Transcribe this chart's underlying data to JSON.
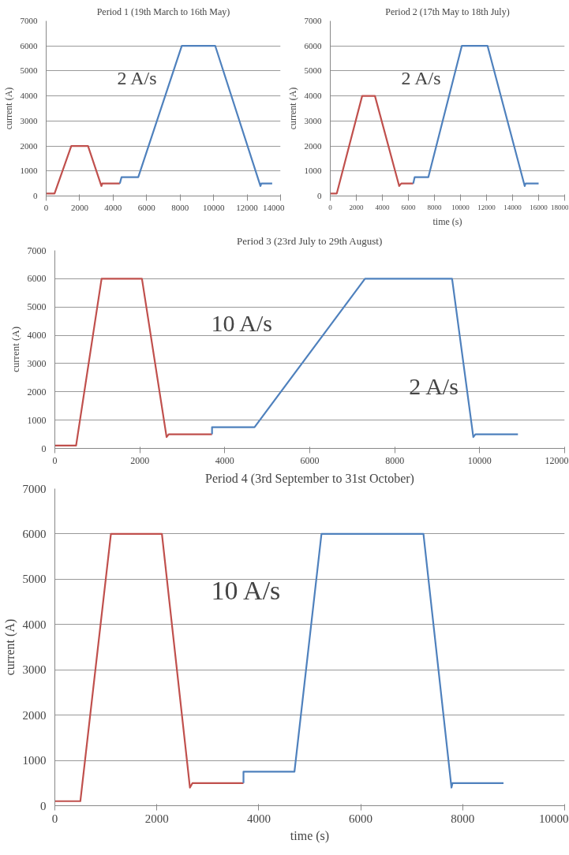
{
  "chart_data": [
    {
      "type": "line",
      "title": "Period 1 (19th March to 16th May)",
      "ylabel": "current (A)",
      "xlim": [
        0,
        14000
      ],
      "ylim": [
        0,
        7000
      ],
      "xticks": [
        0,
        2000,
        4000,
        6000,
        8000,
        10000,
        12000,
        14000
      ],
      "yticks": [
        0,
        1000,
        2000,
        3000,
        4000,
        5000,
        6000,
        7000
      ],
      "grid": "y",
      "annotations": [
        "2 A/s"
      ],
      "series": [
        {
          "color": "#c0504d",
          "x": [
            0,
            500,
            1500,
            2500,
            3300,
            3350,
            4400
          ],
          "values": [
            100,
            100,
            2000,
            2000,
            400,
            500,
            500
          ]
        },
        {
          "color": "#4f81bd",
          "x": [
            4400,
            4500,
            5500,
            8100,
            10100,
            12800,
            12850,
            13500
          ],
          "values": [
            500,
            750,
            750,
            6000,
            6000,
            400,
            500,
            500
          ]
        }
      ]
    },
    {
      "type": "line",
      "title": "Period 2 (17th May to 18th July)",
      "xlabel": "time (s)",
      "ylabel": "current (A)",
      "xlim": [
        0,
        18000
      ],
      "ylim": [
        0,
        7000
      ],
      "xticks": [
        0,
        2000,
        4000,
        6000,
        8000,
        10000,
        12000,
        14000,
        16000,
        18000
      ],
      "yticks": [
        0,
        1000,
        2000,
        3000,
        4000,
        5000,
        6000,
        7000
      ],
      "grid": "y",
      "annotations": [
        "2 A/s"
      ],
      "series": [
        {
          "color": "#c0504d",
          "x": [
            0,
            500,
            2450,
            3430,
            5290,
            5450,
            6370
          ],
          "values": [
            100,
            100,
            4000,
            4000,
            400,
            500,
            500
          ]
        },
        {
          "color": "#4f81bd",
          "x": [
            6370,
            6480,
            7530,
            10100,
            12080,
            14930,
            15000,
            16000
          ],
          "values": [
            500,
            750,
            750,
            6000,
            6000,
            400,
            500,
            500
          ]
        }
      ]
    },
    {
      "type": "line",
      "title": "Period 3 (23rd July to 29th August)",
      "ylabel": "current (A)",
      "xlim": [
        0,
        12000
      ],
      "ylim": [
        0,
        7000
      ],
      "xticks": [
        0,
        2000,
        4000,
        6000,
        8000,
        10000,
        12000
      ],
      "yticks": [
        0,
        1000,
        2000,
        3000,
        4000,
        5000,
        6000,
        7000
      ],
      "grid": "y",
      "annotations": [
        "10 A/s",
        "2 A/s"
      ],
      "series": [
        {
          "color": "#c0504d",
          "x": [
            0,
            500,
            1100,
            2050,
            2630,
            2680,
            3700
          ],
          "values": [
            100,
            100,
            6000,
            6000,
            400,
            500,
            500
          ]
        },
        {
          "color": "#4f81bd",
          "x": [
            3700,
            3700,
            4700,
            7300,
            9350,
            9850,
            9900,
            10900
          ],
          "values": [
            500,
            750,
            750,
            6000,
            6000,
            400,
            500,
            500
          ]
        }
      ]
    },
    {
      "type": "line",
      "title": "Period 4 (3rd September to 31st October)",
      "xlabel": "time (s)",
      "ylabel": "current (A)",
      "xlim": [
        0,
        10000
      ],
      "ylim": [
        0,
        7000
      ],
      "xticks": [
        0,
        2000,
        4000,
        6000,
        8000,
        10000
      ],
      "yticks": [
        0,
        1000,
        2000,
        3000,
        4000,
        5000,
        6000,
        7000
      ],
      "grid": "y",
      "annotations": [
        "10 A/s"
      ],
      "series": [
        {
          "color": "#c0504d",
          "x": [
            0,
            500,
            1100,
            2100,
            2650,
            2700,
            3700
          ],
          "values": [
            100,
            100,
            6000,
            6000,
            400,
            500,
            500
          ]
        },
        {
          "color": "#4f81bd",
          "x": [
            3700,
            3700,
            4700,
            5230,
            7230,
            7780,
            7800,
            8800
          ],
          "values": [
            500,
            750,
            750,
            6000,
            6000,
            400,
            500,
            500
          ]
        }
      ]
    }
  ]
}
